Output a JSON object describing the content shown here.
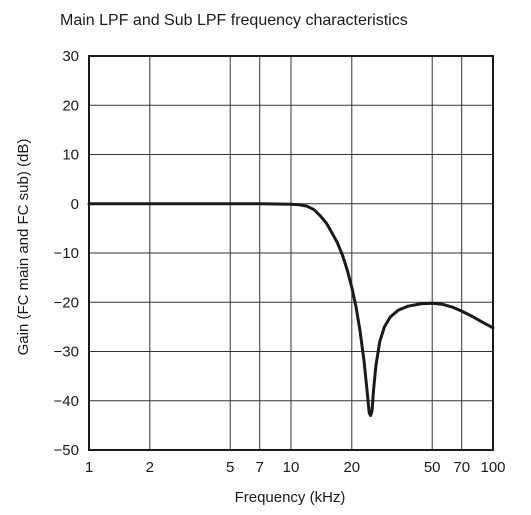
{
  "chart_data": {
    "type": "line",
    "title": "Main LPF and Sub LPF frequency characteristics",
    "xlabel": "Frequency (kHz)",
    "ylabel": "Gain (FC main and FC sub) (dB)",
    "x_scale": "log",
    "xlim": [
      1,
      100
    ],
    "ylim": [
      -50,
      30
    ],
    "x_ticks": [
      1,
      2,
      5,
      7,
      10,
      20,
      50,
      70,
      100
    ],
    "x_tick_labels": [
      "1",
      "2",
      "5",
      "7",
      "10",
      "20",
      "50",
      "70",
      "100"
    ],
    "y_ticks": [
      30,
      20,
      10,
      0,
      -10,
      -20,
      -30,
      -40,
      -50
    ],
    "y_tick_labels": [
      "30",
      "20",
      "10",
      "0",
      "−10",
      "−20",
      "−30",
      "−40",
      "−50"
    ],
    "grid": true,
    "series": [
      {
        "color": "#1a1a1a",
        "points": [
          [
            1,
            0
          ],
          [
            2,
            0
          ],
          [
            5,
            0
          ],
          [
            7,
            0
          ],
          [
            10,
            -0.1
          ],
          [
            11,
            -0.2
          ],
          [
            12,
            -0.5
          ],
          [
            13,
            -1.2
          ],
          [
            14,
            -2.5
          ],
          [
            15,
            -4
          ],
          [
            16,
            -6
          ],
          [
            17,
            -8
          ],
          [
            18,
            -10.5
          ],
          [
            19,
            -13.5
          ],
          [
            20,
            -17
          ],
          [
            21,
            -21
          ],
          [
            22,
            -26
          ],
          [
            23,
            -32
          ],
          [
            23.8,
            -38
          ],
          [
            24.4,
            -42.5
          ],
          [
            24.8,
            -43
          ],
          [
            25.2,
            -42
          ],
          [
            25.6,
            -38
          ],
          [
            26.3,
            -33
          ],
          [
            27.5,
            -28
          ],
          [
            29,
            -25
          ],
          [
            31,
            -23
          ],
          [
            34,
            -21.6
          ],
          [
            38,
            -20.8
          ],
          [
            44,
            -20.3
          ],
          [
            50,
            -20.2
          ],
          [
            56,
            -20.4
          ],
          [
            63,
            -21
          ],
          [
            70,
            -21.8
          ],
          [
            80,
            -23
          ],
          [
            90,
            -24.2
          ],
          [
            100,
            -25.2
          ]
        ]
      }
    ]
  }
}
